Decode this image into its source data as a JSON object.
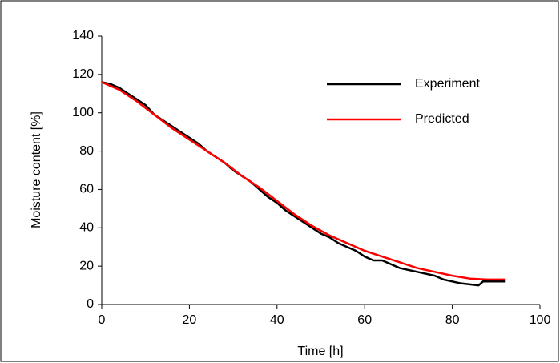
{
  "chart_data": {
    "type": "line",
    "x_label": "Time [h]",
    "y_label": "Moisture content [%]",
    "xlim": [
      0,
      100
    ],
    "xticks": [
      0,
      20,
      40,
      60,
      80,
      100
    ],
    "ylim": [
      0,
      140
    ],
    "yticks": [
      0,
      20,
      40,
      60,
      80,
      100,
      120,
      140
    ],
    "legend": "upper right",
    "series": [
      {
        "name": "Experiment",
        "color": "#000000",
        "x": [
          0,
          2,
          4,
          6,
          8,
          10,
          12,
          14,
          16,
          18,
          20,
          22,
          24,
          26,
          28,
          30,
          32,
          34,
          36,
          38,
          40,
          42,
          44,
          46,
          48,
          50,
          52,
          54,
          56,
          58,
          60,
          62,
          64,
          66,
          68,
          70,
          72,
          74,
          76,
          78,
          80,
          82,
          84,
          86,
          87,
          90,
          92
        ],
        "values": [
          116,
          115,
          113,
          110,
          107,
          104,
          99,
          96,
          93,
          90,
          87,
          84,
          80,
          77,
          74,
          70,
          67,
          64,
          60,
          56,
          53,
          49,
          46,
          43,
          40,
          37,
          35,
          32,
          30,
          28,
          25,
          23,
          23,
          21,
          19,
          18,
          17,
          16,
          15,
          13,
          12,
          11,
          10.5,
          10,
          12,
          12,
          12
        ]
      },
      {
        "name": "Predicted",
        "color": "#ff0000",
        "x": [
          0,
          4,
          8,
          12,
          16,
          20,
          24,
          28,
          32,
          36,
          40,
          44,
          48,
          52,
          56,
          60,
          64,
          68,
          72,
          76,
          80,
          84,
          88,
          92
        ],
        "values": [
          116,
          112,
          106,
          99,
          92,
          86,
          80,
          74,
          67,
          61,
          54,
          47,
          41,
          36,
          32,
          28,
          25,
          22,
          19,
          17,
          15,
          13.5,
          13,
          13
        ]
      }
    ]
  }
}
